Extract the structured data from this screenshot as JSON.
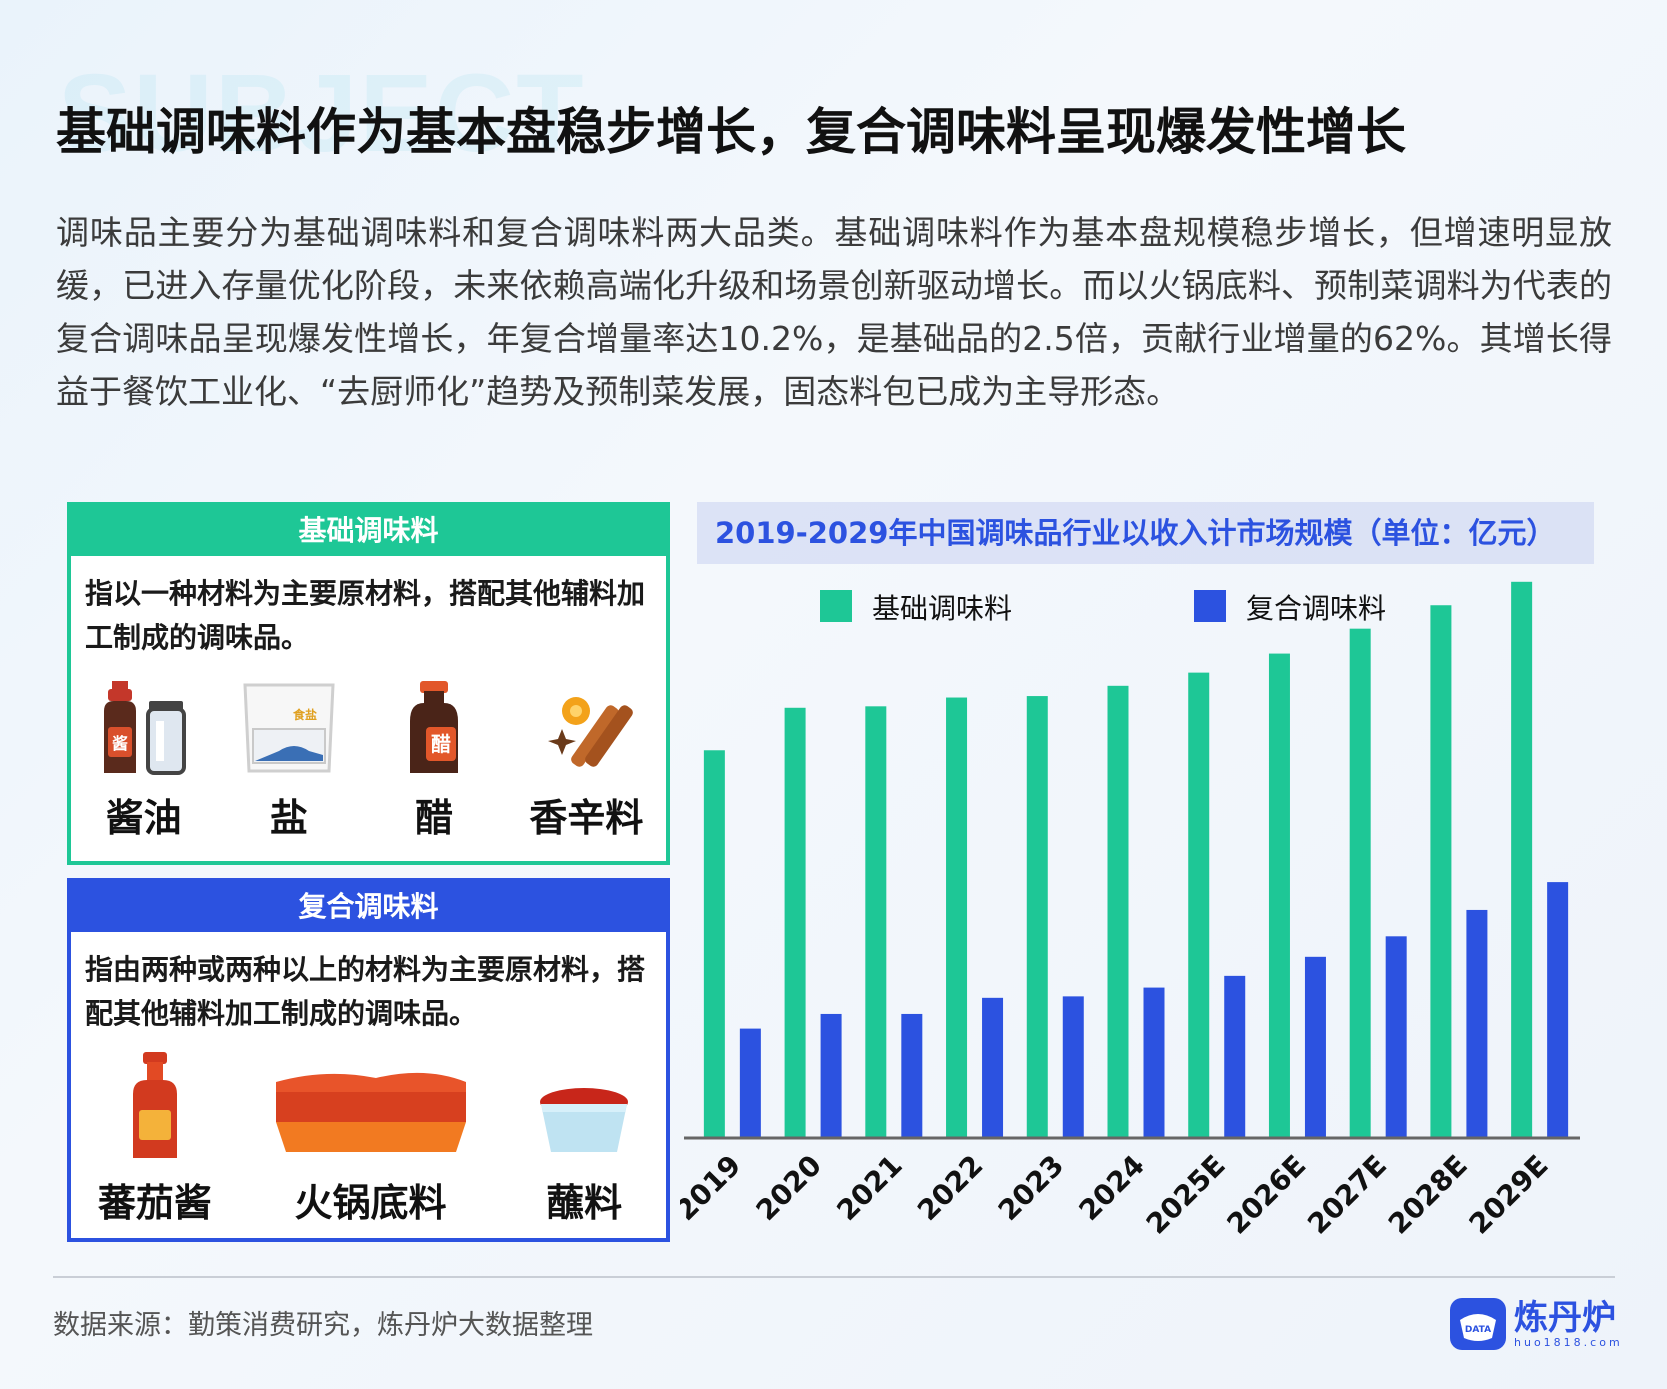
{
  "background_word": "SUBJECT",
  "title": "基础调味料作为基本盘稳步增长，复合调味料呈现爆发性增长",
  "intro": "调味品主要分为基础调味料和复合调味料两大品类。基础调味料作为基本盘规模稳步增长，但增速明显放缓，已进入存量优化阶段，未来依赖高端化升级和场景创新驱动增长。而以火锅底料、预制菜调料为代表的复合调味品呈现爆发性增长，年复合增量率达10.2%，是基础品的2.5倍，贡献行业增量的62%。其增长得益于餐饮工业化、“去厨师化”趋势及预制菜发展，固态料包已成为主导形态。",
  "basic": {
    "header": "基础调味料",
    "desc": "指以一种材料为主要原材料，搭配其他辅料加工制成的调味品。",
    "items": [
      {
        "label": "酱油",
        "icon": "soy-sauce-icon",
        "glyph": "酱"
      },
      {
        "label": "盐",
        "icon": "salt-icon",
        "glyph": "食盐"
      },
      {
        "label": "醋",
        "icon": "vinegar-icon",
        "glyph": "醋"
      },
      {
        "label": "香辛料",
        "icon": "spices-icon"
      }
    ],
    "color": "#1ec796"
  },
  "compound": {
    "header": "复合调味料",
    "desc": "指由两种或两种以上的材料为主要原材料，搭配其他辅料加工制成的调味品。",
    "items": [
      {
        "label": "蕃茄酱",
        "icon": "ketchup-icon"
      },
      {
        "label": "火锅底料",
        "icon": "hotpot-base-icon"
      },
      {
        "label": "蘸料",
        "icon": "dipping-sauce-icon"
      }
    ],
    "color": "#2c52e0"
  },
  "chart_data": {
    "type": "bar",
    "title": "2019-2029年中国调味品行业以收入计市场规模（单位：亿元）",
    "categories": [
      "2019",
      "2020",
      "2021",
      "2022",
      "2023",
      "2024",
      "2025E",
      "2026E",
      "2027E",
      "2028E",
      "2029E"
    ],
    "series": [
      {
        "name": "基础调味料",
        "color": "#1ec796",
        "values": [
          2640,
          2930,
          2940,
          3000,
          3010,
          3080,
          3170,
          3300,
          3470,
          3630,
          3790
        ]
      },
      {
        "name": "复合调味料",
        "color": "#2c52e0",
        "values": [
          740,
          840,
          840,
          950,
          960,
          1020,
          1100,
          1230,
          1370,
          1550,
          1740
        ]
      }
    ],
    "ylim": [
      0,
      4000
    ],
    "legend": "top",
    "grid": false
  },
  "source": "数据来源：勤策消费研究，炼丹炉大数据整理",
  "logo": {
    "name": "炼丹炉",
    "url": "huo1818.com",
    "badge": "DATA"
  }
}
